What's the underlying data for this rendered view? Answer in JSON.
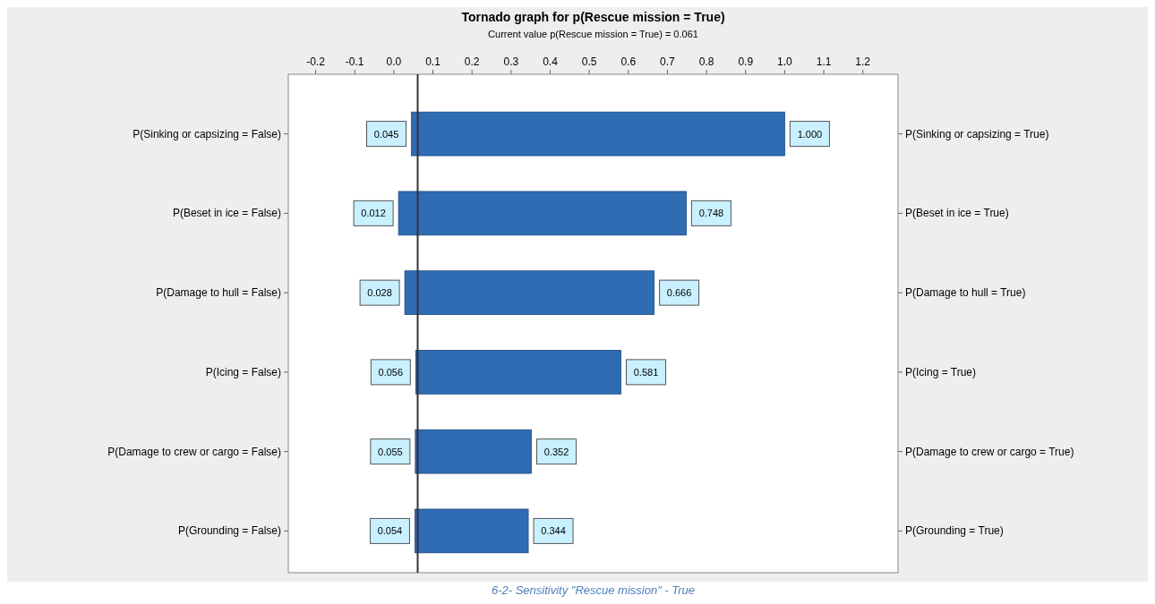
{
  "chart_data": {
    "type": "bar",
    "orientation": "horizontal",
    "title": "Tornado graph for p(Rescue mission = True)",
    "subtitle": "Current value p(Rescue mission = True) = 0.061",
    "categories": [
      "P(Sinking or capsizing = False)",
      "P(Beset in ice = False)",
      "P(Damage to hull = False)",
      "P(Icing = False)",
      "P(Damage to crew or cargo = False)",
      "P(Grounding = False)"
    ],
    "y2_categories": [
      "P(Sinking or capsizing = True)",
      "P(Beset in ice = True)",
      "P(Damage to hull = True)",
      "P(Icing = True)",
      "P(Damage to crew or cargo = True)",
      "P(Grounding = True)"
    ],
    "base": [
      0.045,
      0.012,
      0.028,
      0.056,
      0.055,
      0.054
    ],
    "values": [
      0.955,
      0.736,
      0.638,
      0.525,
      0.297,
      0.29
    ],
    "color": "#2f6cb3",
    "xlim": [
      -0.27,
      1.29
    ],
    "xticks": [
      -0.2,
      -0.1,
      {
        "value": 0,
        "label": "0.0"
      },
      0.1,
      0.2,
      0.3,
      0.4,
      0.5,
      0.6,
      0.7,
      0.8,
      0.9,
      {
        "value": 1,
        "label": "1.0"
      },
      1.1,
      1.2
    ],
    "ref_lines": [
      {
        "axis": "x",
        "value": 0.061,
        "color": "#333333"
      }
    ],
    "grid": false,
    "annotations": [
      {
        "text": "0.045",
        "x": 0.045,
        "y": "P(Sinking or capsizing = False)"
      },
      {
        "text": "1.000",
        "x": 1.0,
        "y": "P(Sinking or capsizing = False)"
      },
      {
        "text": "0.012",
        "x": 0.012,
        "y": "P(Beset in ice = False)"
      },
      {
        "text": "0.748",
        "x": 0.748,
        "y": "P(Beset in ice = False)"
      },
      {
        "text": "0.028",
        "x": 0.028,
        "y": "P(Damage to hull = False)"
      },
      {
        "text": "0.666",
        "x": 0.666,
        "y": "P(Damage to hull = False)"
      },
      {
        "text": "0.056",
        "x": 0.056,
        "y": "P(Icing = False)"
      },
      {
        "text": "0.581",
        "x": 0.581,
        "y": "P(Icing = False)"
      },
      {
        "text": "0.055",
        "x": 0.055,
        "y": "P(Damage to crew or cargo = False)"
      },
      {
        "text": "0.352",
        "x": 0.352,
        "y": "P(Damage to crew or cargo = False)"
      },
      {
        "text": "0.054",
        "x": 0.054,
        "y": "P(Grounding = False)"
      },
      {
        "text": "0.344",
        "x": 0.344,
        "y": "P(Grounding = False)"
      },
      "6-2- Sensitivity \"Rescue mission\" - True"
    ]
  }
}
